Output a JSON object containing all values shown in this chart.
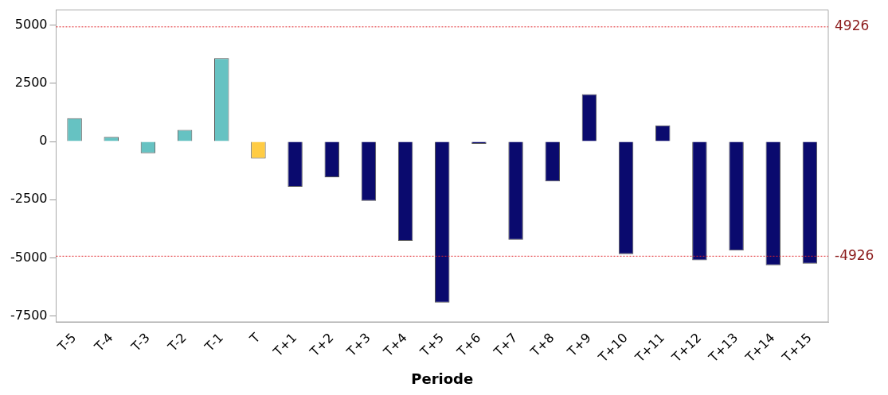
{
  "chart_data": {
    "type": "bar",
    "xlabel": "Periode",
    "categories": [
      "T-5",
      "T-4",
      "T-3",
      "T-2",
      "T-1",
      "T",
      "T+1",
      "T+2",
      "T+3",
      "T+4",
      "T+5",
      "T+6",
      "T+7",
      "T+8",
      "T+9",
      "T+10",
      "T+11",
      "T+12",
      "T+13",
      "T+14",
      "T+15"
    ],
    "values": [
      1000,
      200,
      -500,
      500,
      3580,
      -730,
      -1940,
      -1530,
      -2550,
      -4270,
      -6920,
      -100,
      -4220,
      -1710,
      2030,
      -4840,
      690,
      -5100,
      -4680,
      -5320,
      -5250
    ],
    "colors": [
      "#66c2c2",
      "#66c2c2",
      "#66c2c2",
      "#66c2c2",
      "#66c2c2",
      "#ffcc44",
      "#0a0a6e",
      "#0a0a6e",
      "#0a0a6e",
      "#0a0a6e",
      "#0a0a6e",
      "#0a0a6e",
      "#0a0a6e",
      "#0a0a6e",
      "#0a0a6e",
      "#0a0a6e",
      "#0a0a6e",
      "#0a0a6e",
      "#0a0a6e",
      "#0a0a6e",
      "#0a0a6e"
    ],
    "ylim": [
      -7750,
      5650
    ],
    "yticks": [
      -7500,
      -5000,
      -2500,
      0,
      2500,
      5000
    ],
    "grid": false,
    "legend": false,
    "ref_lines": [
      {
        "axis": "y",
        "value": 4926,
        "label": "4926",
        "color": "#e0242a",
        "line_style": "dotted"
      },
      {
        "axis": "y",
        "value": -4926,
        "label": "-4926",
        "color": "#e0242a",
        "line_style": "dotted"
      }
    ]
  }
}
